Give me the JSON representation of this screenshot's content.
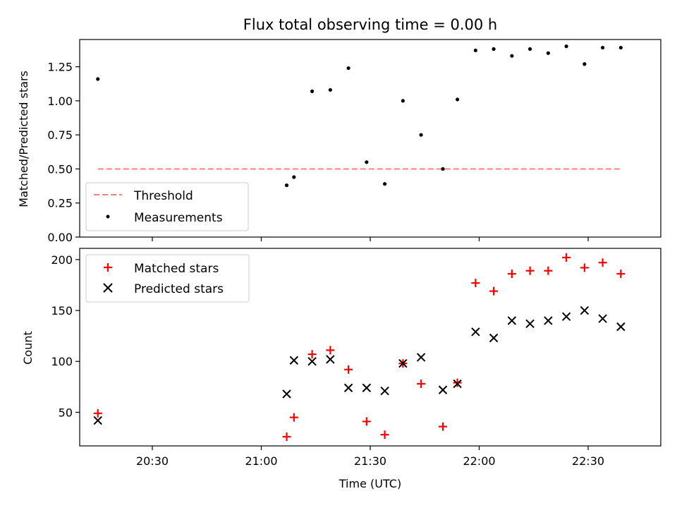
{
  "chart_data": [
    {
      "type": "scatter",
      "title": "Flux total observing time = 0.00 h",
      "ylabel": "Matched/Predicted stars",
      "xlabel": "",
      "xlim": [
        "20:10",
        "22:50"
      ],
      "ylim": [
        0,
        1.45
      ],
      "yticks": [
        0,
        0.25,
        0.5,
        0.75,
        1.0,
        1.25
      ],
      "ytick_labels": [
        "0.00",
        "0.25",
        "0.50",
        "0.75",
        "1.00",
        "1.25"
      ],
      "legend_position": "lower-left",
      "grid": false,
      "series": [
        {
          "name": "Threshold",
          "kind": "dashed-line",
          "color": "#ff7f7f",
          "x": [
            "20:15",
            "22:39"
          ],
          "y": [
            0.5,
            0.5
          ]
        },
        {
          "name": "Measurements",
          "kind": "dot",
          "color": "#000000",
          "x": [
            "20:15",
            "21:07",
            "21:09",
            "21:14",
            "21:19",
            "21:24",
            "21:29",
            "21:34",
            "21:39",
            "21:44",
            "21:50",
            "21:54",
            "21:59",
            "22:04",
            "22:09",
            "22:14",
            "22:19",
            "22:24",
            "22:29",
            "22:34",
            "22:39"
          ],
          "y": [
            1.16,
            0.38,
            0.44,
            1.07,
            1.08,
            1.24,
            0.55,
            0.39,
            1.0,
            0.75,
            0.5,
            1.01,
            1.37,
            1.38,
            1.33,
            1.38,
            1.35,
            1.4,
            1.27,
            1.39,
            1.39
          ]
        }
      ]
    },
    {
      "type": "scatter",
      "title": "",
      "ylabel": "Count",
      "xlabel": "Time (UTC)",
      "xlim": [
        "20:10",
        "22:50"
      ],
      "ylim": [
        17,
        211
      ],
      "yticks": [
        50,
        100,
        150,
        200
      ],
      "ytick_labels": [
        "50",
        "100",
        "150",
        "200"
      ],
      "xticks": [
        "20:30",
        "21:00",
        "21:30",
        "22:00",
        "22:30"
      ],
      "xtick_labels": [
        "20:30",
        "21:00",
        "21:30",
        "22:00",
        "22:30"
      ],
      "legend_position": "upper-left",
      "grid": false,
      "series": [
        {
          "name": "Matched stars",
          "kind": "plus",
          "color": "#ff0000",
          "x": [
            "20:15",
            "21:07",
            "21:09",
            "21:14",
            "21:19",
            "21:24",
            "21:29",
            "21:34",
            "21:39",
            "21:44",
            "21:50",
            "21:54",
            "21:59",
            "22:04",
            "22:09",
            "22:14",
            "22:19",
            "22:24",
            "22:29",
            "22:34",
            "22:39"
          ],
          "y": [
            49,
            26,
            45,
            107,
            111,
            92,
            41,
            28,
            98,
            78,
            36,
            79,
            177,
            169,
            186,
            189,
            189,
            202,
            192,
            197,
            186
          ]
        },
        {
          "name": "Predicted stars",
          "kind": "x",
          "color": "#000000",
          "x": [
            "20:15",
            "21:07",
            "21:09",
            "21:14",
            "21:19",
            "21:24",
            "21:29",
            "21:34",
            "21:39",
            "21:44",
            "21:50",
            "21:54",
            "21:59",
            "22:04",
            "22:09",
            "22:14",
            "22:19",
            "22:24",
            "22:29",
            "22:34",
            "22:39"
          ],
          "y": [
            42,
            68,
            101,
            100,
            102,
            74,
            74,
            71,
            98,
            104,
            72,
            78,
            129,
            123,
            140,
            137,
            140,
            144,
            150,
            142,
            134
          ]
        }
      ]
    }
  ]
}
